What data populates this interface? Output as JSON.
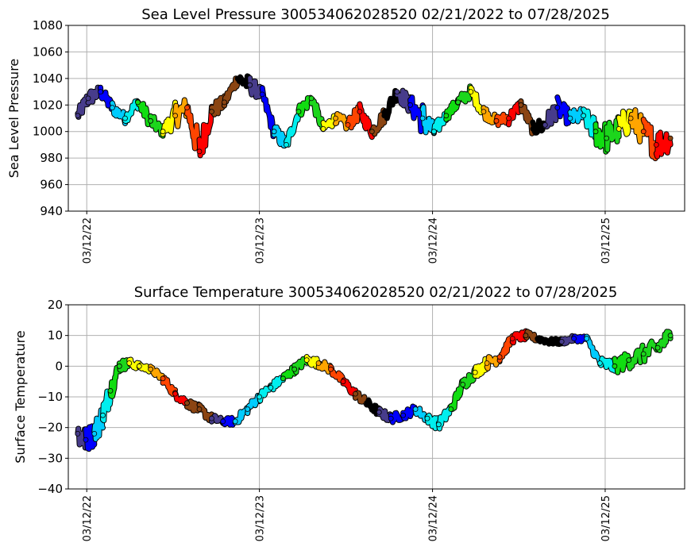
{
  "colors": {
    "palette": [
      "#473c8b",
      "#0000ff",
      "#00ccff",
      "#00eeee",
      "#11dd11",
      "#1cd61c",
      "#ffff00",
      "#ffa500",
      "#ff4500",
      "#ff0000",
      "#8b4513",
      "#000000"
    ]
  },
  "chart_data": [
    {
      "type": "scatter",
      "title": "Sea Level Pressure 300534062028520  02/21/2022 to 07/28/2025",
      "xlabel": "",
      "ylabel": "Sea Level Pressure",
      "x_range": [
        "2022-02-01",
        "2025-08-27"
      ],
      "ylim": [
        940,
        1080
      ],
      "yticks": [
        "940",
        "960",
        "980",
        "1000",
        "1020",
        "1040",
        "1060",
        "1080"
      ],
      "xticks": [
        "03/12/22",
        "03/12/23",
        "03/12/24",
        "03/12/25"
      ],
      "grid": true,
      "x": [
        "2022-02-21",
        "2022-03-15",
        "2022-04-10",
        "2022-05-05",
        "2022-06-01",
        "2022-06-28",
        "2022-07-25",
        "2022-08-20",
        "2022-09-15",
        "2022-10-10",
        "2022-11-05",
        "2022-12-01",
        "2022-12-28",
        "2023-01-25",
        "2023-02-20",
        "2023-03-18",
        "2023-04-12",
        "2023-05-08",
        "2023-06-03",
        "2023-06-30",
        "2023-07-25",
        "2023-08-20",
        "2023-09-15",
        "2023-10-10",
        "2023-11-05",
        "2023-12-01",
        "2023-12-28",
        "2024-01-25",
        "2024-02-20",
        "2024-03-15",
        "2024-04-10",
        "2024-05-05",
        "2024-06-01",
        "2024-06-28",
        "2024-07-25",
        "2024-08-20",
        "2024-09-15",
        "2024-10-10",
        "2024-11-05",
        "2024-12-01",
        "2024-12-28",
        "2025-01-25",
        "2025-02-20",
        "2025-03-15",
        "2025-04-10",
        "2025-05-05",
        "2025-06-01",
        "2025-06-28",
        "2025-07-28"
      ],
      "y": [
        1012,
        1025,
        1030,
        1018,
        1010,
        1022,
        1008,
        1000,
        1012,
        1018,
        985,
        1015,
        1022,
        1040,
        1035,
        1028,
        1000,
        990,
        1015,
        1025,
        1002,
        1010,
        1005,
        1015,
        1000,
        1012,
        1030,
        1020,
        1010,
        1000,
        1012,
        1022,
        1030,
        1015,
        1008,
        1010,
        1020,
        1002,
        1005,
        1018,
        1010,
        1012,
        1000,
        995,
        1002,
        1010,
        1000,
        990,
        995
      ],
      "spread": [
        10,
        12,
        10,
        10,
        8,
        10,
        12,
        8,
        20,
        16,
        30,
        14,
        10,
        10,
        14,
        10,
        12,
        12,
        10,
        10,
        10,
        8,
        10,
        12,
        10,
        12,
        12,
        14,
        26,
        12,
        8,
        10,
        10,
        10,
        8,
        10,
        10,
        10,
        14,
        16,
        12,
        12,
        22,
        24,
        22,
        22,
        22,
        24,
        20
      ],
      "color_index": [
        0,
        0,
        1,
        2,
        3,
        4,
        5,
        6,
        7,
        8,
        9,
        10,
        10,
        11,
        0,
        1,
        2,
        3,
        4,
        5,
        6,
        7,
        8,
        9,
        10,
        11,
        0,
        1,
        2,
        3,
        4,
        5,
        6,
        7,
        8,
        9,
        10,
        11,
        0,
        1,
        2,
        3,
        4,
        5,
        6,
        7,
        8,
        9,
        10
      ]
    },
    {
      "type": "scatter",
      "title": "Surface Temperature 300534062028520  02/21/2022 to 07/28/2025",
      "xlabel": "",
      "ylabel": "Surface Temperature",
      "x_range": [
        "2022-02-01",
        "2025-08-27"
      ],
      "ylim": [
        -40,
        20
      ],
      "yticks": [
        "−40",
        "−30",
        "−20",
        "−10",
        "0",
        "10",
        "20"
      ],
      "xticks": [
        "03/12/22",
        "03/12/23",
        "03/12/24",
        "03/12/25"
      ],
      "grid": true,
      "x": [
        "2022-02-21",
        "2022-03-10",
        "2022-03-28",
        "2022-04-15",
        "2022-05-01",
        "2022-05-20",
        "2022-06-10",
        "2022-07-01",
        "2022-07-25",
        "2022-08-20",
        "2022-09-15",
        "2022-10-10",
        "2022-11-05",
        "2022-12-01",
        "2022-12-25",
        "2023-01-20",
        "2023-02-15",
        "2023-03-12",
        "2023-04-05",
        "2023-05-01",
        "2023-05-25",
        "2023-06-20",
        "2023-07-15",
        "2023-08-10",
        "2023-09-05",
        "2023-10-01",
        "2023-10-25",
        "2023-11-20",
        "2023-12-15",
        "2024-01-10",
        "2024-02-05",
        "2024-03-01",
        "2024-03-25",
        "2024-04-20",
        "2024-05-15",
        "2024-06-10",
        "2024-07-05",
        "2024-08-01",
        "2024-08-28",
        "2024-09-25",
        "2024-10-20",
        "2024-11-15",
        "2024-12-10",
        "2025-01-05",
        "2025-02-01",
        "2025-03-01",
        "2025-04-01",
        "2025-05-01",
        "2025-06-01",
        "2025-07-01",
        "2025-07-28"
      ],
      "y": [
        -22,
        -24,
        -22,
        -16,
        -8,
        0,
        1,
        0,
        -1,
        -4,
        -9,
        -12,
        -14,
        -17,
        -18,
        -18,
        -14,
        -10,
        -7,
        -4,
        -1,
        2,
        1,
        -1,
        -5,
        -9,
        -12,
        -15,
        -17,
        -16,
        -14,
        -17,
        -19,
        -14,
        -6,
        -2,
        1,
        3,
        9,
        10,
        9,
        8,
        8,
        9,
        9,
        1,
        0,
        2,
        4,
        6,
        10
      ],
      "spread": [
        10,
        8,
        8,
        9,
        8,
        4,
        3,
        2,
        2,
        3,
        3,
        3,
        3,
        3,
        2,
        3,
        3,
        3,
        3,
        3,
        3,
        3,
        3,
        3,
        3,
        3,
        3,
        3,
        3,
        3,
        3,
        3,
        4,
        4,
        4,
        4,
        4,
        4,
        3,
        3,
        2,
        2,
        2,
        2,
        2,
        4,
        5,
        6,
        6,
        6,
        6
      ],
      "color_index": [
        0,
        1,
        2,
        3,
        4,
        5,
        6,
        6,
        7,
        8,
        9,
        10,
        10,
        0,
        1,
        2,
        2,
        3,
        3,
        4,
        5,
        6,
        7,
        8,
        9,
        10,
        11,
        0,
        1,
        1,
        2,
        3,
        3,
        4,
        5,
        6,
        7,
        8,
        9,
        10,
        11,
        11,
        0,
        1,
        2,
        3,
        4,
        5,
        5,
        5,
        5
      ]
    }
  ]
}
